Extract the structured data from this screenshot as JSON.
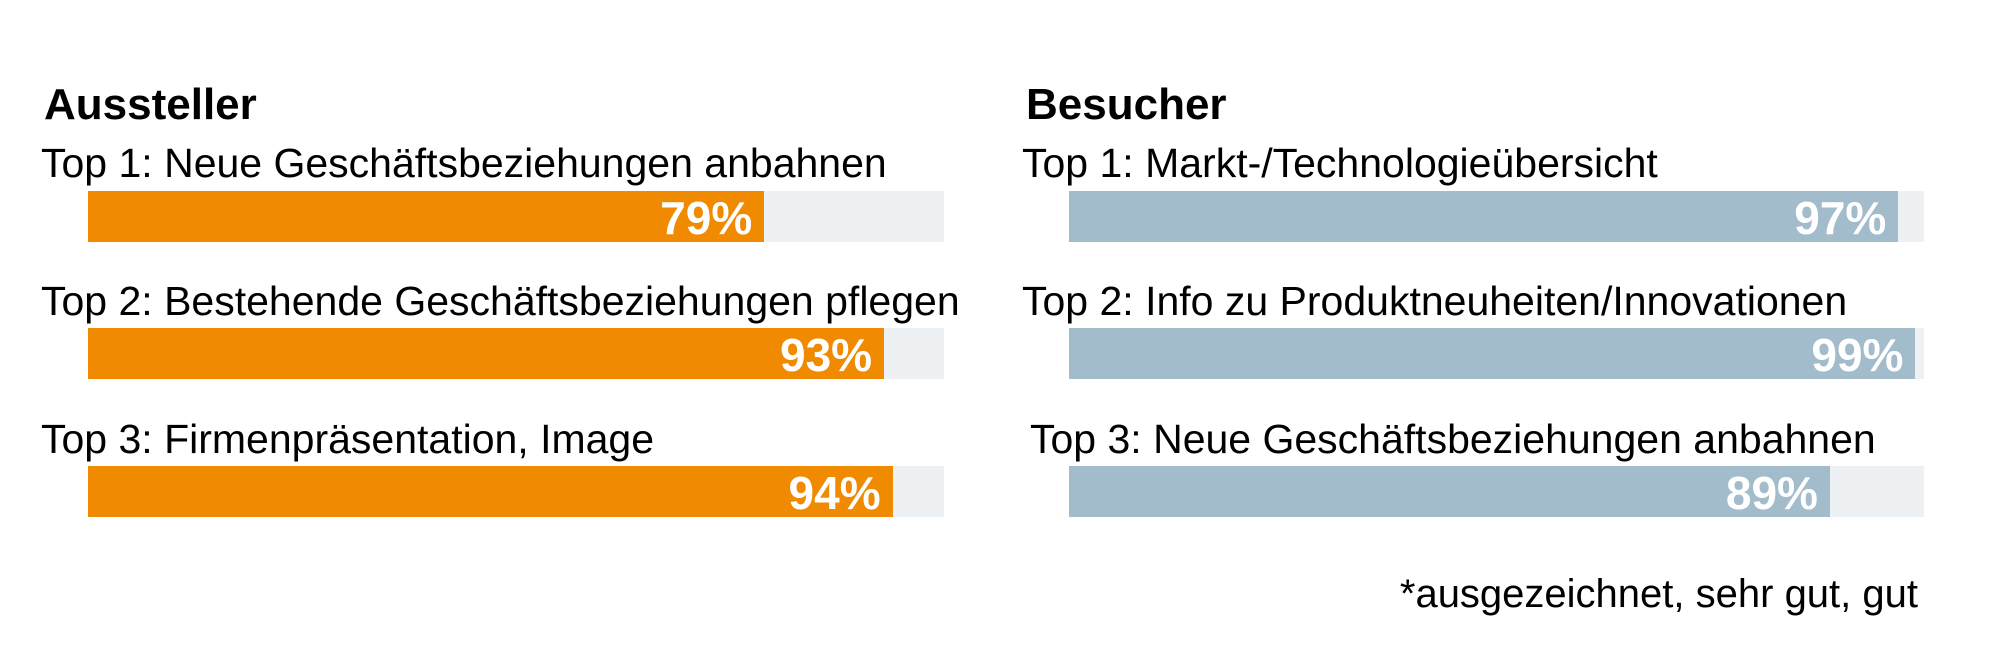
{
  "chart_data": [
    {
      "type": "bar",
      "orientation": "horizontal",
      "title": "Aussteller",
      "categories": [
        "Top 1: Neue Geschäftsbeziehungen anbahnen",
        "Top 2: Bestehende Geschäftsbeziehungen pflegen",
        "Top 3: Firmenpräsentation, Image"
      ],
      "values": [
        79,
        93,
        94
      ],
      "data_labels": [
        "79%",
        "93%",
        "94%"
      ],
      "xlim": [
        0,
        100
      ],
      "color": "#F08A00",
      "track_color": "#EDF1F4"
    },
    {
      "type": "bar",
      "orientation": "horizontal",
      "title": "Besucher",
      "categories": [
        "Top 1: Markt-/Technologieübersicht",
        "Top 2: Info zu Produktneuheiten/Innovationen",
        "Top 3: Neue Geschäftsbeziehungen anbahnen"
      ],
      "values": [
        97,
        99,
        89
      ],
      "data_labels": [
        "97%",
        "99%",
        "89%"
      ],
      "xlim": [
        0,
        100
      ],
      "color": "#A3BCCB",
      "track_color": "#EDF1F4"
    }
  ],
  "footnote": "*ausgezeichnet, sehr gut, gut"
}
